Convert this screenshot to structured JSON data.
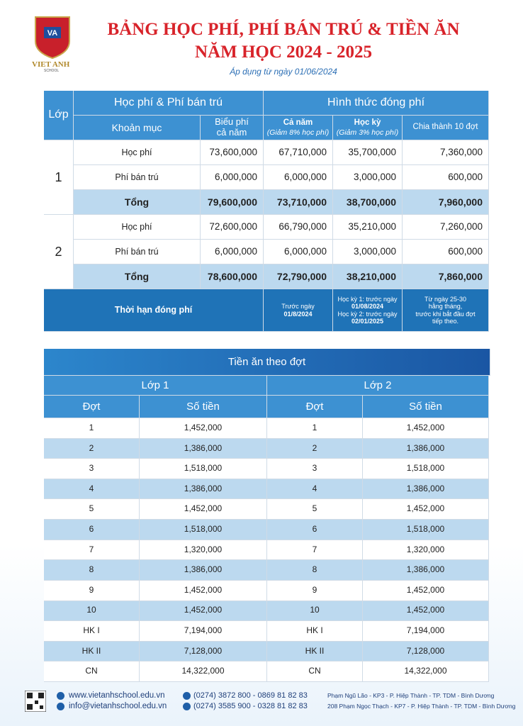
{
  "header": {
    "logo_text": "VIET ANH",
    "logo_sub": "SCHOOL",
    "title_line1": "BẢNG HỌC PHÍ, PHÍ BÁN TRÚ & TIỀN ĂN",
    "title_line2": "NĂM HỌC 2024 - 2025",
    "subtitle": "Áp dụng từ ngày 01/06/2024"
  },
  "fee_table": {
    "grade_header": "Lớp",
    "group1": "Học phí & Phí bán trú",
    "group2": "Hình thức đóng phí",
    "columns": [
      [
        "Khoản mục"
      ],
      [
        "Biểu phí",
        "cả năm"
      ],
      [
        "Cả năm",
        "(Giảm 8% học phí)"
      ],
      [
        "Học kỳ",
        "(Giảm 3% học phí)"
      ],
      [
        "Chia thành 10 đợt"
      ]
    ],
    "grades": [
      {
        "grade": "1",
        "rows": [
          [
            "Học phí",
            "73,600,000",
            "67,710,000",
            "35,700,000",
            "7,360,000"
          ],
          [
            "Phí bán trú",
            "6,000,000",
            "6,000,000",
            "3,000,000",
            "600,000"
          ],
          [
            "Tổng",
            "79,600,000",
            "73,710,000",
            "38,700,000",
            "7,960,000"
          ]
        ]
      },
      {
        "grade": "2",
        "rows": [
          [
            "Học phí",
            "72,600,000",
            "66,790,000",
            "35,210,000",
            "7,260,000"
          ],
          [
            "Phí bán trú",
            "6,000,000",
            "6,000,000",
            "3,000,000",
            "600,000"
          ],
          [
            "Tổng",
            "78,600,000",
            "72,790,000",
            "38,210,000",
            "7,860,000"
          ]
        ]
      }
    ],
    "deadline_label": "Thời hạn đóng phí",
    "deadlines": [
      [
        "Trước ngày",
        "01/8/2024"
      ],
      [
        "Học kỳ 1: trước ngày",
        "01/08/2024",
        "Học kỳ 2: trước ngày",
        "02/01/2025"
      ],
      [
        "Từ ngày 25-30",
        "hằng tháng,",
        "trước khi bắt đầu đợt",
        "tiếp theo."
      ]
    ]
  },
  "meal_table": {
    "title": "Tiền ăn theo đợt",
    "groups": [
      "Lớp 1",
      "Lớp 2"
    ],
    "columns": [
      "Đợt",
      "Số tiền",
      "Đợt",
      "Số tiền"
    ],
    "rows": [
      [
        "1",
        "1,452,000",
        "1",
        "1,452,000"
      ],
      [
        "2",
        "1,386,000",
        "2",
        "1,386,000"
      ],
      [
        "3",
        "1,518,000",
        "3",
        "1,518,000"
      ],
      [
        "4",
        "1,386,000",
        "4",
        "1,386,000"
      ],
      [
        "5",
        "1,452,000",
        "5",
        "1,452,000"
      ],
      [
        "6",
        "1,518,000",
        "6",
        "1,518,000"
      ],
      [
        "7",
        "1,320,000",
        "7",
        "1,320,000"
      ],
      [
        "8",
        "1,386,000",
        "8",
        "1,386,000"
      ],
      [
        "9",
        "1,452,000",
        "9",
        "1,452,000"
      ],
      [
        "10",
        "1,452,000",
        "10",
        "1,452,000"
      ],
      [
        "HK I",
        "7,194,000",
        "HK I",
        "7,194,000"
      ],
      [
        "HK II",
        "7,128,000",
        "HK II",
        "7,128,000"
      ],
      [
        "CN",
        "14,322,000",
        "CN",
        "14,322,000"
      ]
    ]
  },
  "footer": {
    "website": "www.vietanhschool.edu.vn",
    "email": "info@vietanhschool.edu.vn",
    "phone1": "(0274) 3872 800 - 0869 81 82 83",
    "phone2": "(0274) 3585 900 - 0328 81 82 83",
    "address1": "Phạm Ngũ Lão - KP3 - P. Hiệp Thành - TP. TDM - Bình Dương",
    "address2": "208 Phạm Ngọc Thạch - KP7 - P. Hiệp Thành - TP. TDM - Bình Dương"
  }
}
